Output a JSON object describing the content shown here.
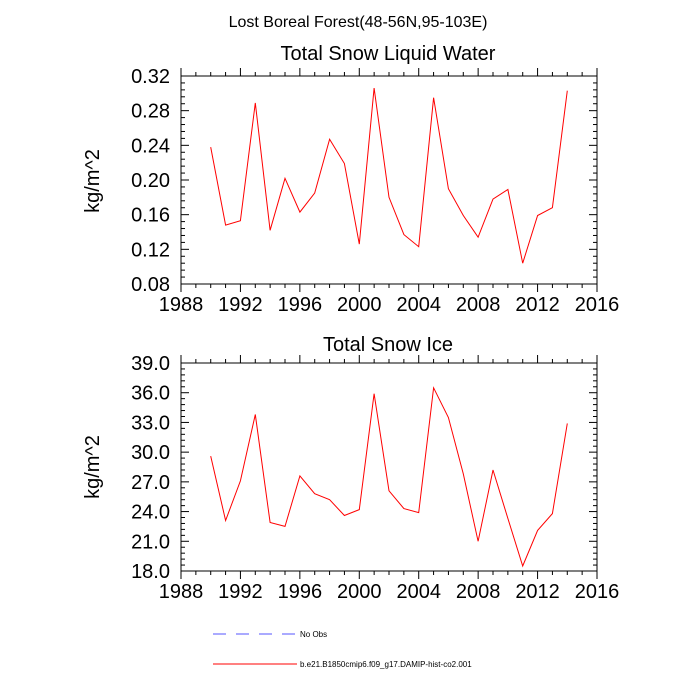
{
  "figure": {
    "title": "Lost Boreal Forest(48-56N,95-103E)"
  },
  "chart_data": [
    {
      "type": "line",
      "title": "Total Snow Liquid Water",
      "xlabel": "",
      "ylabel": "kg/m^2",
      "xlim": [
        1988,
        2016
      ],
      "ylim": [
        0.08,
        0.32
      ],
      "xticks": [
        1988,
        1992,
        1996,
        2000,
        2004,
        2008,
        2012,
        2016
      ],
      "xtick_labels": [
        "1988",
        "1992",
        "1996",
        "2000",
        "2004",
        "2008",
        "2012",
        "2016"
      ],
      "yticks": [
        0.08,
        0.12,
        0.16,
        0.2,
        0.24,
        0.28,
        0.32
      ],
      "ytick_labels": [
        "0.08",
        "0.12",
        "0.16",
        "0.20",
        "0.24",
        "0.28",
        "0.32"
      ],
      "grid": false,
      "x": [
        1990,
        1991,
        1992,
        1993,
        1994,
        1995,
        1996,
        1997,
        1998,
        1999,
        2000,
        2001,
        2002,
        2003,
        2004,
        2005,
        2006,
        2007,
        2008,
        2009,
        2010,
        2011,
        2012,
        2013,
        2014
      ],
      "series": [
        {
          "name": "b.e21.B1850cmip6.f09_g17.DAMIP-hist-co2.001",
          "color": "#ff0000",
          "values": [
            0.238,
            0.148,
            0.153,
            0.289,
            0.142,
            0.202,
            0.163,
            0.185,
            0.247,
            0.219,
            0.126,
            0.306,
            0.18,
            0.137,
            0.123,
            0.295,
            0.19,
            0.159,
            0.134,
            0.178,
            0.189,
            0.104,
            0.159,
            0.168,
            0.303
          ]
        }
      ]
    },
    {
      "type": "line",
      "title": "Total Snow Ice",
      "xlabel": "",
      "ylabel": "kg/m^2",
      "xlim": [
        1988,
        2016
      ],
      "ylim": [
        18.0,
        39.0
      ],
      "xticks": [
        1988,
        1992,
        1996,
        2000,
        2004,
        2008,
        2012,
        2016
      ],
      "xtick_labels": [
        "1988",
        "1992",
        "1996",
        "2000",
        "2004",
        "2008",
        "2012",
        "2016"
      ],
      "yticks": [
        18.0,
        21.0,
        24.0,
        27.0,
        30.0,
        33.0,
        36.0,
        39.0
      ],
      "ytick_labels": [
        "18.0",
        "21.0",
        "24.0",
        "27.0",
        "30.0",
        "33.0",
        "36.0",
        "39.0"
      ],
      "grid": false,
      "x": [
        1990,
        1991,
        1992,
        1993,
        1994,
        1995,
        1996,
        1997,
        1998,
        1999,
        2000,
        2001,
        2002,
        2003,
        2004,
        2005,
        2006,
        2007,
        2008,
        2009,
        2010,
        2011,
        2012,
        2013,
        2014
      ],
      "series": [
        {
          "name": "b.e21.B1850cmip6.f09_g17.DAMIP-hist-co2.001",
          "color": "#ff0000",
          "values": [
            29.6,
            23.1,
            27.1,
            33.8,
            22.9,
            22.5,
            27.6,
            25.8,
            25.2,
            23.6,
            24.2,
            35.9,
            26.1,
            24.3,
            23.9,
            36.5,
            33.5,
            27.8,
            21.0,
            28.2,
            23.3,
            18.5,
            22.1,
            23.8,
            32.9
          ]
        }
      ]
    }
  ],
  "legend": {
    "placement": "bottom-center",
    "items": [
      {
        "label": "No Obs",
        "color": "#5555ff",
        "style": "dashed"
      },
      {
        "label": "b.e21.B1850cmip6.f09_g17.DAMIP-hist-co2.001",
        "color": "#ff0000",
        "style": "solid"
      }
    ]
  }
}
